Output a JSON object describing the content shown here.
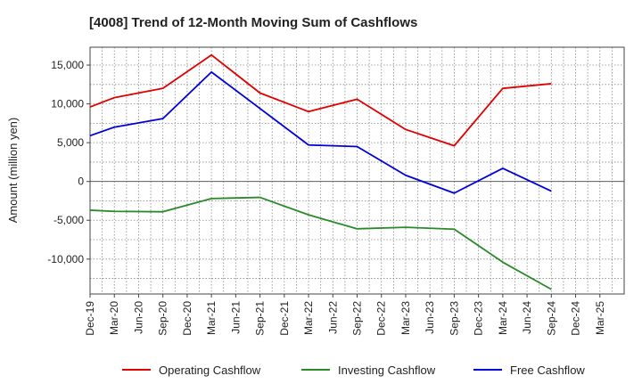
{
  "chart_data": {
    "type": "line",
    "title": "[4008]  Trend of 12-Month Moving Sum of Cashflows",
    "ylabel": "Amount (million yen)",
    "xlabel": "",
    "ylim": [
      -14500,
      17300
    ],
    "yticks": [
      15000,
      10000,
      5000,
      0,
      -5000,
      -10000
    ],
    "ytick_labels": [
      "15,000",
      "10,000",
      "5,000",
      "0",
      "-5,000",
      "-10,000"
    ],
    "categories": [
      "Dec-19",
      "Mar-20",
      "Jun-20",
      "Sep-20",
      "Dec-20",
      "Mar-21",
      "Jun-21",
      "Sep-21",
      "Dec-21",
      "Mar-22",
      "Jun-22",
      "Sep-22",
      "Dec-22",
      "Mar-23",
      "Jun-23",
      "Sep-23",
      "Dec-23",
      "Mar-24",
      "Jun-24",
      "Sep-24",
      "Dec-24",
      "Mar-25"
    ],
    "grid": true,
    "legend_position": "bottom",
    "series": [
      {
        "name": "Operating Cashflow",
        "color": "#e00000",
        "values": [
          9600,
          10800,
          null,
          12000,
          null,
          16300,
          null,
          11400,
          null,
          9000,
          null,
          10600,
          null,
          6700,
          null,
          4600,
          null,
          12000,
          null,
          12600,
          null,
          null
        ]
      },
      {
        "name": "Investing Cashflow",
        "color": "#2a8a2a",
        "values": [
          -3700,
          -3850,
          null,
          -3900,
          null,
          -2200,
          null,
          -2050,
          null,
          -4300,
          null,
          -6100,
          null,
          -5900,
          null,
          -6150,
          null,
          -10400,
          null,
          -13900,
          null,
          null
        ]
      },
      {
        "name": "Free Cashflow",
        "color": "#0000dd",
        "values": [
          5900,
          7000,
          null,
          8100,
          null,
          14100,
          null,
          9400,
          null,
          4700,
          null,
          4500,
          null,
          800,
          null,
          -1500,
          null,
          1700,
          null,
          -1250,
          null,
          null
        ]
      }
    ]
  }
}
